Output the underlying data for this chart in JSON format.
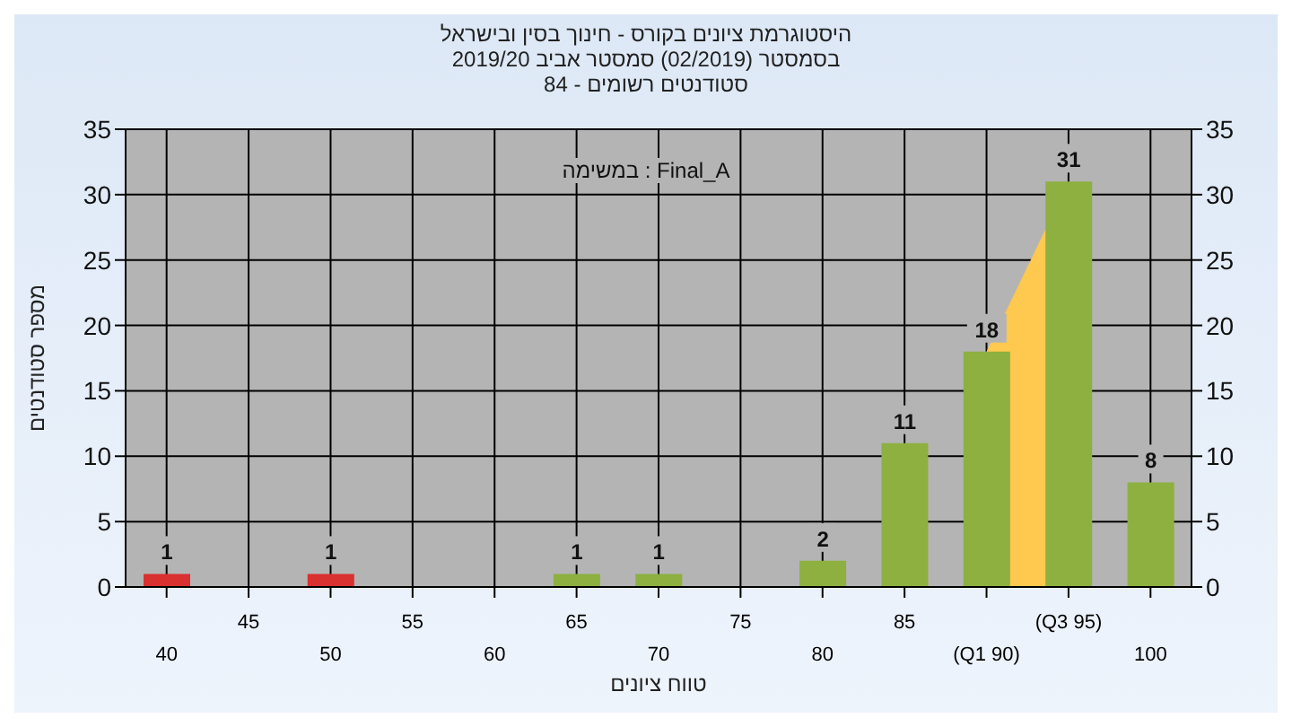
{
  "chart_data": {
    "type": "bar",
    "title": "היסטוגרמת ציונים בקורס - חינוך בסין ובישראל",
    "subtitle": "בסמסטר (02/2019) סמסטר אביב 2019/20\nסטודנטים רשומים - 84",
    "xlabel": "טווח ציונים",
    "ylabel": "מספר סטודנטים",
    "annotations": [
      "במשימה : Final_A"
    ],
    "categories": [
      "40",
      "45",
      "50",
      "55",
      "60",
      "65",
      "70",
      "75",
      "80",
      "85",
      "(Q1 90)",
      "(Q3 95)",
      "100"
    ],
    "series": [
      {
        "type": "area",
        "color": "#ffc84e",
        "values": [
          null,
          null,
          null,
          null,
          null,
          null,
          null,
          null,
          null,
          null,
          18,
          31,
          null
        ]
      },
      {
        "value_labels": [
          "1",
          null,
          "1",
          null,
          null,
          "1",
          "1",
          null,
          "2",
          "11",
          "18",
          "31",
          "8"
        ],
        "colors": [
          "#d93030",
          "#d93030",
          "#d93030",
          "#d93030",
          "#d93030",
          "#8db040",
          "#8db040",
          "#8db040",
          "#8db040",
          "#8db040",
          "#8db040",
          "#8db040",
          "#8db040"
        ],
        "values": [
          1,
          null,
          1,
          null,
          null,
          1,
          1,
          null,
          2,
          11,
          18,
          31,
          8
        ]
      }
    ],
    "ylim": [
      0,
      35
    ],
    "yticks": [
      0,
      5,
      10,
      15,
      20,
      25,
      30,
      35
    ],
    "y2lim": [
      0,
      35
    ],
    "y2ticks": [
      0,
      5,
      10,
      15,
      20,
      25,
      30,
      35
    ],
    "grid": true
  }
}
